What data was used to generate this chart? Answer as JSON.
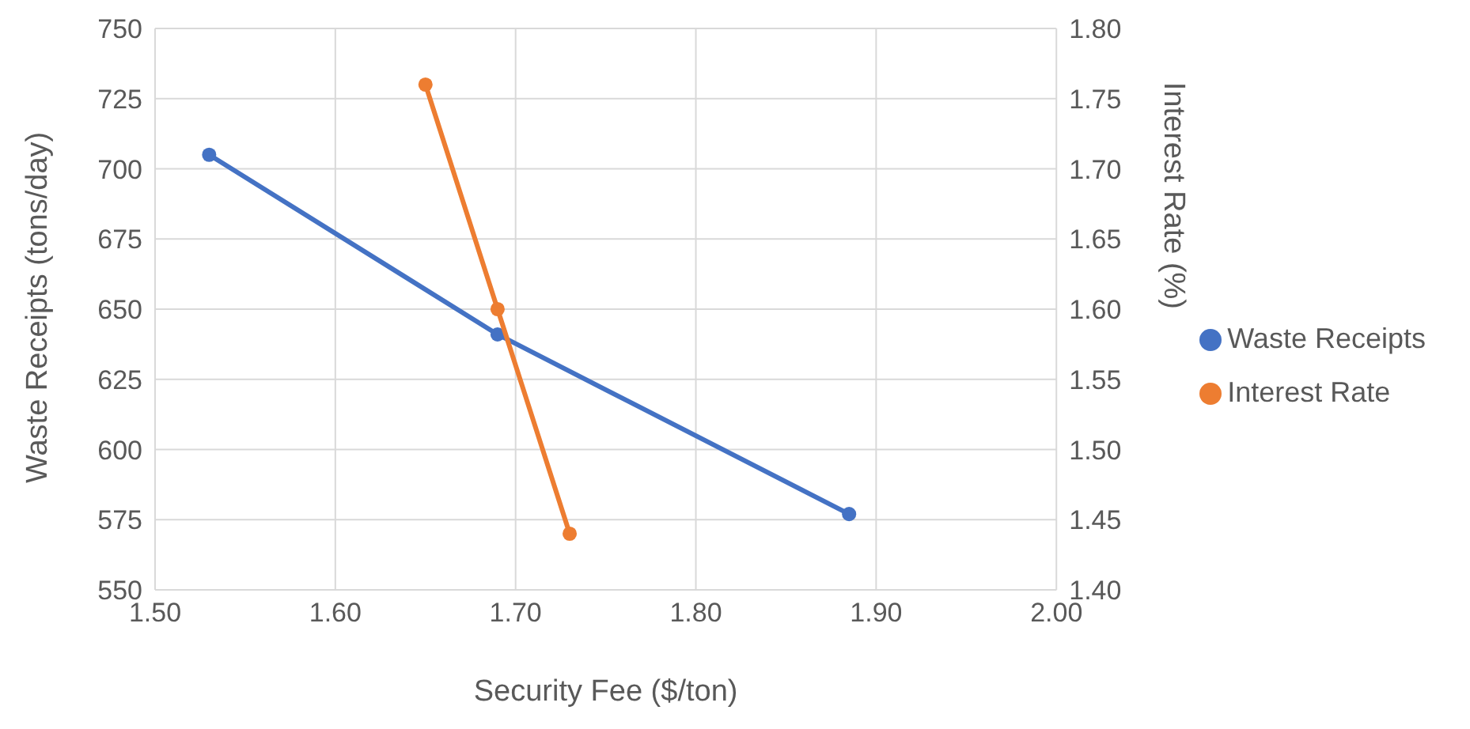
{
  "chart_data": {
    "type": "line",
    "xlabel": "Security Fee ($/ton)",
    "ylabel": "Waste Receipts (tons/day)",
    "y2label": "Interest Rate (%)",
    "xlim": [
      1.5,
      2.0
    ],
    "xticks": [
      {
        "value": 1.5,
        "label": "1.50"
      },
      {
        "value": 1.6,
        "label": "1.60"
      },
      {
        "value": 1.7,
        "label": "1.70"
      },
      {
        "value": 1.8,
        "label": "1.80"
      },
      {
        "value": 1.9,
        "label": "1.90"
      },
      {
        "value": 2.0,
        "label": "2.00"
      }
    ],
    "ylim": [
      550,
      750
    ],
    "yticks": [
      550,
      575,
      600,
      625,
      650,
      675,
      700,
      725,
      750
    ],
    "y2lim": [
      1.4,
      1.8
    ],
    "y2ticks": [
      {
        "value": 1.4,
        "label": "1.40"
      },
      {
        "value": 1.45,
        "label": "1.45"
      },
      {
        "value": 1.5,
        "label": "1.50"
      },
      {
        "value": 1.55,
        "label": "1.55"
      },
      {
        "value": 1.6,
        "label": "1.60"
      },
      {
        "value": 1.65,
        "label": "1.65"
      },
      {
        "value": 1.7,
        "label": "1.70"
      },
      {
        "value": 1.75,
        "label": "1.75"
      },
      {
        "value": 1.8,
        "label": "1.80"
      }
    ],
    "grid": true,
    "legend": "right",
    "marker": "circle",
    "line_style": "solid",
    "series": [
      {
        "name": "Waste Receipts",
        "color": "#4472c4",
        "x": [
          1.53,
          1.69,
          1.885
        ],
        "values": [
          705,
          641,
          577
        ]
      },
      {
        "name": "Interest Rate",
        "color": "#ed7d31",
        "axis": "y2",
        "x": [
          1.65,
          1.69,
          1.73
        ],
        "values": [
          1.76,
          1.6,
          1.44
        ]
      }
    ]
  }
}
